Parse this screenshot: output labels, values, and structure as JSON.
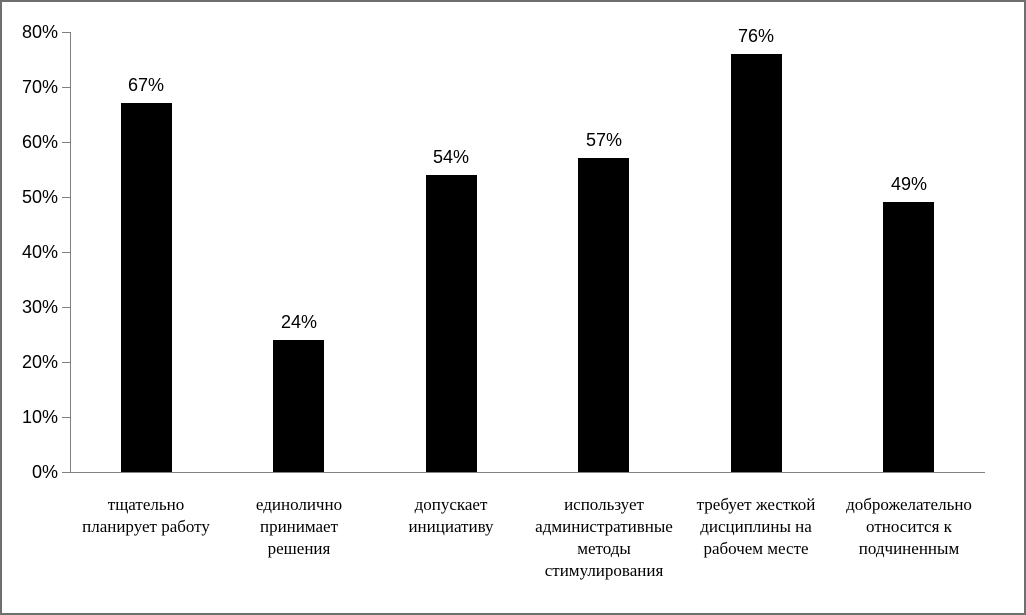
{
  "chart_data": {
    "type": "bar",
    "title": "",
    "xlabel": "",
    "ylabel": "",
    "categories": [
      "тщательно\nпланирует работу",
      "единолично\nпринимает\nрешения",
      "допускает\nинициативу",
      "использует\nадминистративные\nметоды\nстимулирования",
      "требует жесткой\nдисциплины на\nрабочем месте",
      "доброжелательно\nотносится к\nподчиненным"
    ],
    "values": [
      67,
      24,
      54,
      57,
      76,
      49
    ],
    "value_labels": [
      "67%",
      "24%",
      "54%",
      "57%",
      "76%",
      "49%"
    ],
    "y_ticks": [
      "0%",
      "10%",
      "20%",
      "30%",
      "40%",
      "50%",
      "60%",
      "70%",
      "80%"
    ],
    "ylim": [
      0,
      80
    ],
    "grid": false,
    "legend": false,
    "bar_color": "#000000",
    "axis_color": "#808080",
    "frame_border_color": "#6f6f6f",
    "background_color": "#ffffff"
  }
}
